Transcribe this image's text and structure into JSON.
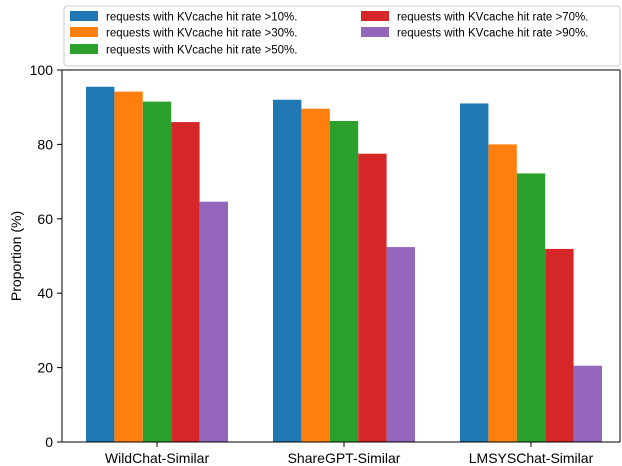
{
  "chart_data": {
    "type": "bar",
    "title": "",
    "xlabel": "",
    "ylabel": "Proportion (%)",
    "ylim": [
      0,
      100
    ],
    "yticks": [
      0,
      20,
      40,
      60,
      80,
      100
    ],
    "grid": false,
    "legend_position": "top",
    "categories": [
      "WildChat-Similar",
      "ShareGPT-Similar",
      "LMSYSChat-Similar"
    ],
    "series": [
      {
        "name": "requests with KVcache hit rate >10%.",
        "color": "#1f77b4",
        "values": [
          95.5,
          92.0,
          91.0
        ]
      },
      {
        "name": "requests with KVcache hit rate >30%.",
        "color": "#ff7f0e",
        "values": [
          94.2,
          89.6,
          80.0
        ]
      },
      {
        "name": "requests with KVcache hit rate >50%.",
        "color": "#2ca02c",
        "values": [
          91.5,
          86.3,
          72.2
        ]
      },
      {
        "name": "requests with KVcache hit rate >70%.",
        "color": "#d62728",
        "values": [
          86.0,
          77.5,
          51.9
        ]
      },
      {
        "name": "requests with KVcache hit rate >90%.",
        "color": "#9467bd",
        "values": [
          64.6,
          52.4,
          20.5
        ]
      }
    ]
  }
}
